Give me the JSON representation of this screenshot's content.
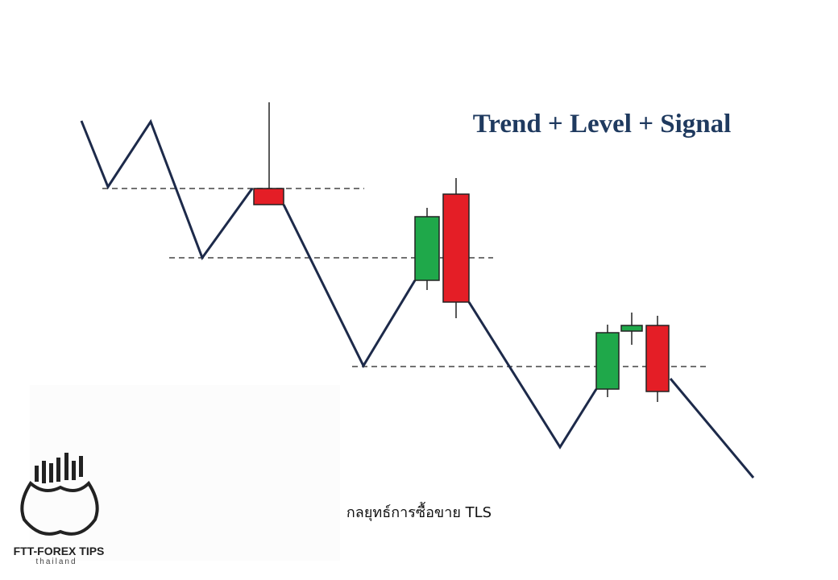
{
  "title": "Trend + Level + Signal",
  "caption": "กลยุทธ์การซื้อขาย TLS",
  "logo": {
    "name": "FTT-FOREX TIPS",
    "subtitle": "thailand"
  }
}
